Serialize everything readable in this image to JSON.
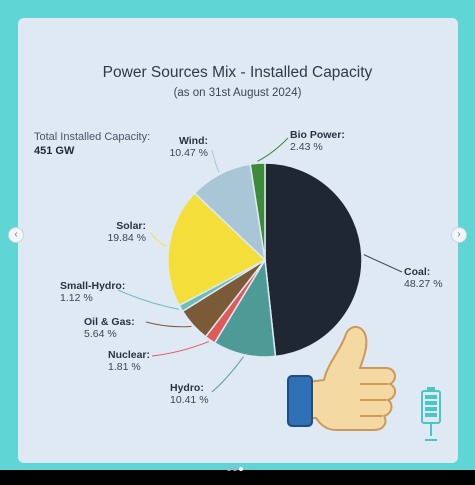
{
  "chart_data": {
    "type": "pie",
    "title": "Power Sources Mix - Installed Capacity",
    "subtitle": "(as on 31st August 2024)",
    "total_label": "Total Installed Capacity:",
    "total_value": "451 GW",
    "slices": [
      {
        "name": "Coal:",
        "value": 48.27,
        "label": "48.27 %",
        "color": "#1f2733"
      },
      {
        "name": "Hydro:",
        "value": 10.41,
        "label": "10.41 %",
        "color": "#4e9a96"
      },
      {
        "name": "Nuclear:",
        "value": 1.81,
        "label": "1.81 %",
        "color": "#e05a57"
      },
      {
        "name": "Oil & Gas:",
        "value": 5.64,
        "label": "5.64 %",
        "color": "#7b5a37"
      },
      {
        "name": "Small-Hydro:",
        "value": 1.12,
        "label": "1.12 %",
        "color": "#6fbdb9"
      },
      {
        "name": "Solar:",
        "value": 19.84,
        "label": "19.84 %",
        "color": "#f4df3a"
      },
      {
        "name": "Wind:",
        "value": 10.47,
        "label": "10.47 %",
        "color": "#a9c6d6"
      },
      {
        "name": "Bio Power:",
        "value": 2.43,
        "label": "2.43 %",
        "color": "#3d8a3a"
      }
    ]
  },
  "icons": [
    "thumbs-up-icon",
    "battery-icon",
    "chevron-left-icon",
    "chevron-right-icon"
  ],
  "nav": {
    "prev": "‹",
    "next": "›"
  }
}
